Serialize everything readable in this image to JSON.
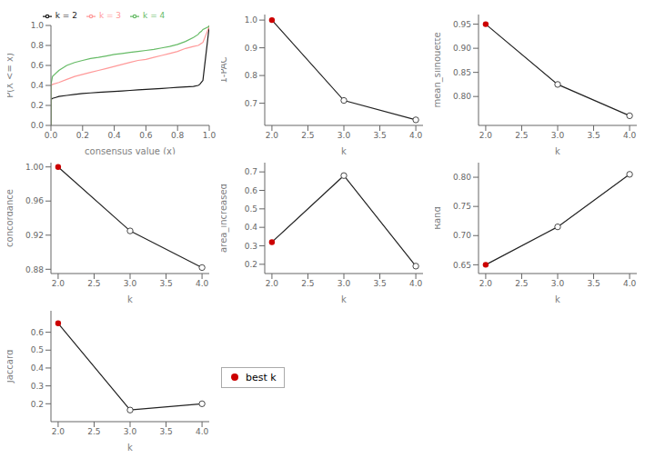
{
  "chart_data": [
    {
      "type": "line",
      "xlabel": "consensus value (x)",
      "ylabel": "P(X <= x)",
      "xlim": [
        0,
        1
      ],
      "ylim": [
        0,
        1
      ],
      "xticks": [
        {
          "value": 0,
          "label": "0.0"
        },
        0.2,
        0.4,
        0.6,
        0.8,
        {
          "value": 1,
          "label": "1.0"
        }
      ],
      "yticks": [
        {
          "value": 0,
          "label": "0.0"
        },
        0.2,
        0.4,
        0.6,
        0.8,
        {
          "value": 1,
          "label": "1.0"
        }
      ],
      "legend": "top",
      "series": [
        {
          "name": "k = 2",
          "color": "#1a1a1a",
          "x": [
            0.0,
            0.0,
            0.01,
            0.02,
            0.03,
            0.05,
            0.1,
            0.15,
            0.2,
            0.25,
            0.3,
            0.35,
            0.4,
            0.45,
            0.5,
            0.55,
            0.6,
            0.65,
            0.7,
            0.75,
            0.8,
            0.85,
            0.9,
            0.93,
            0.94,
            0.95,
            0.96,
            1.0,
            1.0
          ],
          "values": [
            0.0,
            0.26,
            0.27,
            0.275,
            0.28,
            0.29,
            0.3,
            0.31,
            0.32,
            0.325,
            0.33,
            0.335,
            0.34,
            0.345,
            0.35,
            0.355,
            0.36,
            0.365,
            0.37,
            0.375,
            0.38,
            0.385,
            0.39,
            0.4,
            0.41,
            0.43,
            0.45,
            0.99,
            1.0
          ]
        },
        {
          "name": "k = 3",
          "color": "#ff9999",
          "x": [
            0.0,
            0.0,
            0.01,
            0.05,
            0.1,
            0.15,
            0.2,
            0.25,
            0.3,
            0.35,
            0.4,
            0.45,
            0.5,
            0.55,
            0.6,
            0.65,
            0.7,
            0.75,
            0.8,
            0.85,
            0.9,
            0.93,
            0.94,
            0.95,
            0.96,
            1.0,
            1.0
          ],
          "values": [
            0.0,
            0.4,
            0.41,
            0.43,
            0.46,
            0.49,
            0.51,
            0.53,
            0.55,
            0.57,
            0.59,
            0.61,
            0.63,
            0.65,
            0.66,
            0.68,
            0.7,
            0.72,
            0.74,
            0.77,
            0.79,
            0.8,
            0.81,
            0.82,
            0.83,
            0.99,
            1.0
          ]
        },
        {
          "name": "k = 4",
          "color": "#66bb66",
          "x": [
            0.0,
            0.0,
            0.01,
            0.05,
            0.1,
            0.15,
            0.2,
            0.25,
            0.3,
            0.35,
            0.4,
            0.45,
            0.5,
            0.55,
            0.6,
            0.65,
            0.7,
            0.75,
            0.8,
            0.85,
            0.9,
            0.93,
            0.94,
            0.95,
            0.96,
            1.0,
            1.0
          ],
          "values": [
            0.0,
            0.41,
            0.49,
            0.55,
            0.6,
            0.63,
            0.65,
            0.67,
            0.68,
            0.695,
            0.71,
            0.72,
            0.73,
            0.74,
            0.75,
            0.76,
            0.775,
            0.79,
            0.81,
            0.84,
            0.88,
            0.91,
            0.93,
            0.94,
            0.96,
            0.99,
            1.0
          ]
        }
      ]
    },
    {
      "type": "line",
      "xlabel": "k",
      "ylabel": "1-PAC",
      "x": [
        2,
        3,
        4
      ],
      "values": [
        1.0,
        0.71,
        0.64
      ],
      "color": "#222222",
      "colors": [
        "#cc0000",
        "white",
        "white"
      ],
      "marker": "circle",
      "xlim": [
        1.9,
        4.1
      ],
      "xticks": [
        {
          "value": 2,
          "label": "2.0"
        },
        2.5,
        {
          "value": 3,
          "label": "3.0"
        },
        3.5,
        {
          "value": 4,
          "label": "4.0"
        }
      ],
      "ylim": [
        0.62,
        1.02
      ],
      "yticks": [
        0.7,
        0.8,
        0.9,
        {
          "value": 1.0,
          "label": "1.0"
        }
      ]
    },
    {
      "type": "line",
      "xlabel": "k",
      "ylabel": "mean_silhouette",
      "x": [
        2,
        3,
        4
      ],
      "values": [
        0.95,
        0.825,
        0.76
      ],
      "color": "#222222",
      "colors": [
        "#cc0000",
        "white",
        "white"
      ],
      "marker": "circle",
      "xlim": [
        1.9,
        4.1
      ],
      "xticks": [
        {
          "value": 2,
          "label": "2.0"
        },
        2.5,
        {
          "value": 3,
          "label": "3.0"
        },
        3.5,
        {
          "value": 4,
          "label": "4.0"
        }
      ],
      "ylim": [
        0.74,
        0.97
      ],
      "yticks": [
        {
          "value": 0.8,
          "label": "0.80"
        },
        0.85,
        {
          "value": 0.9,
          "label": "0.90"
        },
        0.95
      ]
    },
    {
      "type": "line",
      "xlabel": "k",
      "ylabel": "concordance",
      "x": [
        2,
        3,
        4
      ],
      "values": [
        1.0,
        0.925,
        0.882
      ],
      "color": "#222222",
      "colors": [
        "#cc0000",
        "white",
        "white"
      ],
      "marker": "circle",
      "xlim": [
        1.9,
        4.1
      ],
      "xticks": [
        {
          "value": 2,
          "label": "2.0"
        },
        2.5,
        {
          "value": 3,
          "label": "3.0"
        },
        3.5,
        {
          "value": 4,
          "label": "4.0"
        }
      ],
      "ylim": [
        0.875,
        1.005
      ],
      "yticks": [
        0.88,
        0.92,
        0.96,
        {
          "value": 1.0,
          "label": "1.00"
        }
      ]
    },
    {
      "type": "line",
      "xlabel": "k",
      "ylabel": "area_increased",
      "x": [
        2,
        3,
        4
      ],
      "values": [
        0.32,
        0.68,
        0.19
      ],
      "color": "#222222",
      "colors": [
        "#cc0000",
        "white",
        "white"
      ],
      "marker": "circle",
      "xlim": [
        1.9,
        4.1
      ],
      "xticks": [
        {
          "value": 2,
          "label": "2.0"
        },
        2.5,
        {
          "value": 3,
          "label": "3.0"
        },
        3.5,
        {
          "value": 4,
          "label": "4.0"
        }
      ],
      "ylim": [
        0.15,
        0.75
      ],
      "yticks": [
        0.2,
        0.3,
        0.4,
        0.5,
        0.6,
        0.7
      ]
    },
    {
      "type": "line",
      "xlabel": "k",
      "ylabel": "Rand",
      "x": [
        2,
        3,
        4
      ],
      "values": [
        0.65,
        0.715,
        0.805
      ],
      "color": "#222222",
      "colors": [
        "#cc0000",
        "white",
        "white"
      ],
      "marker": "circle",
      "xlim": [
        1.9,
        4.1
      ],
      "xticks": [
        {
          "value": 2,
          "label": "2.0"
        },
        2.5,
        {
          "value": 3,
          "label": "3.0"
        },
        3.5,
        {
          "value": 4,
          "label": "4.0"
        }
      ],
      "ylim": [
        0.635,
        0.825
      ],
      "yticks": [
        0.65,
        {
          "value": 0.7,
          "label": "0.70"
        },
        0.75,
        {
          "value": 0.8,
          "label": "0.80"
        }
      ]
    },
    {
      "type": "line",
      "xlabel": "k",
      "ylabel": "Jaccard",
      "x": [
        2,
        3,
        4
      ],
      "values": [
        0.65,
        0.165,
        0.2
      ],
      "color": "#222222",
      "colors": [
        "#cc0000",
        "white",
        "white"
      ],
      "marker": "circle",
      "xlim": [
        1.9,
        4.1
      ],
      "xticks": [
        {
          "value": 2,
          "label": "2.0"
        },
        2.5,
        {
          "value": 3,
          "label": "3.0"
        },
        3.5,
        {
          "value": 4,
          "label": "4.0"
        }
      ],
      "ylim": [
        0.1,
        0.72
      ],
      "yticks": [
        0.2,
        0.3,
        0.4,
        0.5,
        0.6
      ]
    },
    {
      "type": "legend",
      "series": [
        {
          "name": "best k",
          "color": "#cc0000",
          "marker": "circle"
        }
      ]
    }
  ]
}
